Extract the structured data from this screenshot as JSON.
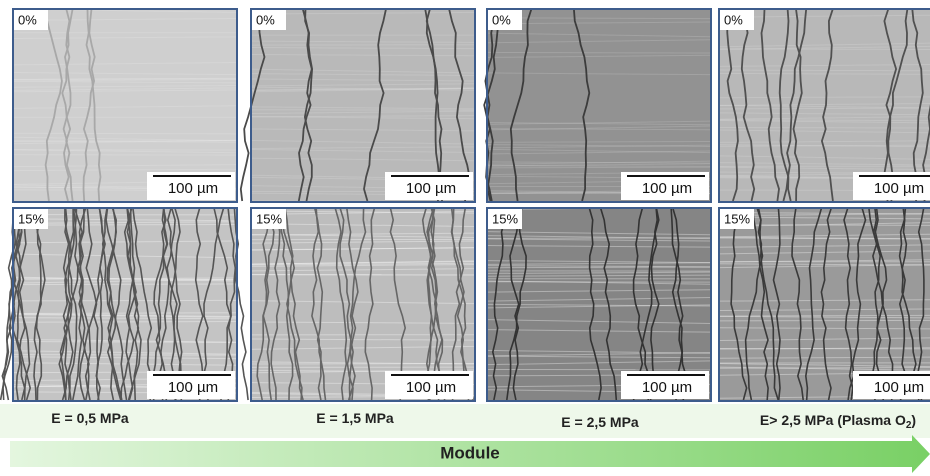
{
  "panels": [
    {
      "strain": "0%",
      "scale": "100 µm"
    },
    {
      "strain": "0%",
      "scale": "100 µm"
    },
    {
      "strain": "0%",
      "scale": "100 µm"
    },
    {
      "strain": "0%",
      "scale": "100 µm"
    },
    {
      "strain": "15%",
      "scale": "100 µm"
    },
    {
      "strain": "15%",
      "scale": "100 µm"
    },
    {
      "strain": "15%",
      "scale": "100 µm"
    },
    {
      "strain": "15%",
      "scale": "100 µm"
    }
  ],
  "columns": [
    {
      "label": "E = 0,5 MPa"
    },
    {
      "label": "E = 1,5 MPa"
    },
    {
      "label": "E = 2,5 MPa"
    },
    {
      "label": "E> 2,5 MPa (Plasma O",
      "subscript": "2",
      "tail": ")"
    }
  ],
  "arrow": {
    "label": "Module"
  }
}
